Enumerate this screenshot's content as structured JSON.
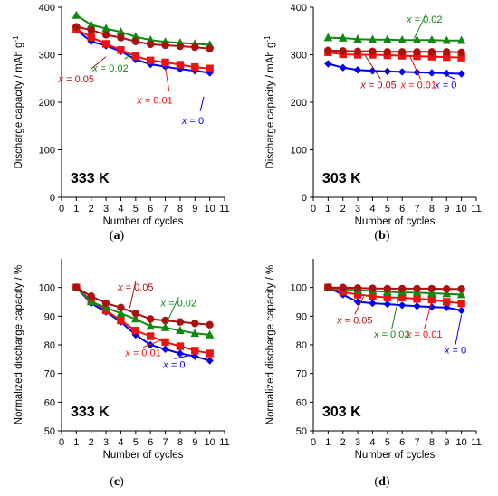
{
  "colors": {
    "x0": "#0000ee",
    "x001": "#ee1111",
    "x002": "#118811",
    "x005": "#aa1111",
    "axis": "#000000"
  },
  "chart_data": [
    {
      "type": "line",
      "panel": "(a)",
      "temperature_label": "333 K",
      "xlabel": "Number of cycles",
      "ylabel": "Discharge capacity / mAh g-1",
      "xlim": [
        0,
        11
      ],
      "ylim": [
        0,
        400
      ],
      "xticks": [
        0,
        1,
        2,
        3,
        4,
        5,
        6,
        7,
        8,
        9,
        10,
        11
      ],
      "yticks": [
        0,
        100,
        200,
        300,
        400
      ],
      "x": [
        1,
        2,
        3,
        4,
        5,
        6,
        7,
        8,
        9,
        10
      ],
      "series": [
        {
          "name": "x = 0",
          "color_key": "x0",
          "marker": "diamond",
          "values": [
            352,
            328,
            319,
            307,
            290,
            280,
            275,
            270,
            266,
            262
          ]
        },
        {
          "name": "x = 0.01",
          "color_key": "x001",
          "marker": "square",
          "values": [
            354,
            337,
            323,
            310,
            297,
            288,
            284,
            279,
            274,
            271
          ]
        },
        {
          "name": "x = 0.02",
          "color_key": "x002",
          "marker": "triangle",
          "values": [
            383,
            363,
            355,
            348,
            338,
            331,
            327,
            325,
            323,
            321
          ]
        },
        {
          "name": "x = 0.05",
          "color_key": "x005",
          "marker": "circle",
          "values": [
            359,
            352,
            342,
            336,
            328,
            322,
            320,
            318,
            316,
            313
          ]
        }
      ],
      "annotations": [
        {
          "text": "x = 0.05",
          "tx": 2.2,
          "ty": 250,
          "ax": 3.0,
          "ay": 296,
          "color_key": "x005",
          "anchor": "end"
        },
        {
          "text": "x = 0.02",
          "tx": 4.5,
          "ty": 272,
          "ax": 4.8,
          "ay": 303,
          "color_key": "x002",
          "anchor": "end"
        },
        {
          "text": "x = 0.01",
          "tx": 7.5,
          "ty": 205,
          "ax": 7.0,
          "ay": 274,
          "color_key": "x001",
          "anchor": "end"
        },
        {
          "text": "x = 0",
          "tx": 9.6,
          "ty": 162,
          "ax": 9.6,
          "ay": 212,
          "color_key": "x0",
          "anchor": "end"
        }
      ]
    },
    {
      "type": "line",
      "panel": "(b)",
      "temperature_label": "303 K",
      "xlabel": "Number of cycles",
      "ylabel": "Discharge capacity / mAh g-1",
      "xlim": [
        0,
        11
      ],
      "ylim": [
        0,
        400
      ],
      "xticks": [
        0,
        1,
        2,
        3,
        4,
        5,
        6,
        7,
        8,
        9,
        10,
        11
      ],
      "yticks": [
        0,
        100,
        200,
        300,
        400
      ],
      "x": [
        1,
        2,
        3,
        4,
        5,
        6,
        7,
        8,
        9,
        10
      ],
      "series": [
        {
          "name": "x = 0",
          "color_key": "x0",
          "marker": "diamond",
          "values": [
            281,
            273,
            268,
            266,
            265,
            264,
            263,
            262,
            261,
            260
          ]
        },
        {
          "name": "x = 0.01",
          "color_key": "x001",
          "marker": "square",
          "values": [
            305,
            301,
            300,
            300,
            299,
            298,
            297,
            296,
            295,
            294
          ]
        },
        {
          "name": "x = 0.02",
          "color_key": "x002",
          "marker": "triangle",
          "values": [
            336,
            335,
            333,
            332,
            332,
            331,
            331,
            331,
            330,
            330
          ]
        },
        {
          "name": "x = 0.05",
          "color_key": "x005",
          "marker": "circle",
          "values": [
            309,
            308,
            307,
            307,
            306,
            306,
            306,
            306,
            306,
            305
          ]
        }
      ],
      "annotations": [
        {
          "text": "x = 0.02",
          "tx": 6.3,
          "ty": 368,
          "ax": 6.8,
          "ay": 334,
          "color_key": "x002",
          "anchor": "start"
        },
        {
          "text": "x = 0.05",
          "tx": 3.2,
          "ty": 230,
          "ax": 3.5,
          "ay": 298,
          "color_key": "x005",
          "anchor": "start"
        },
        {
          "text": "x = 0.01",
          "tx": 5.9,
          "ty": 230,
          "ax": 6.5,
          "ay": 298,
          "color_key": "x001",
          "anchor": "start"
        },
        {
          "text": "x = 0",
          "tx": 8.2,
          "ty": 230,
          "ax": 8.8,
          "ay": 260,
          "color_key": "x0",
          "anchor": "start"
        }
      ]
    },
    {
      "type": "line",
      "panel": "(c)",
      "temperature_label": "333 K",
      "xlabel": "Number of cycles",
      "ylabel": "Normalized discharge capacity / %",
      "xlim": [
        0,
        11
      ],
      "ylim": [
        50,
        110
      ],
      "xticks": [
        0,
        1,
        2,
        3,
        4,
        5,
        6,
        7,
        8,
        9,
        10,
        11
      ],
      "yticks": [
        50,
        60,
        70,
        80,
        90,
        100
      ],
      "x": [
        1,
        2,
        3,
        4,
        5,
        6,
        7,
        8,
        9,
        10
      ],
      "series": [
        {
          "name": "x = 0",
          "color_key": "x0",
          "marker": "diamond",
          "values": [
            100,
            94.5,
            91.5,
            88,
            83.5,
            80,
            78.5,
            77,
            76,
            74.5
          ]
        },
        {
          "name": "x = 0.01",
          "color_key": "x001",
          "marker": "square",
          "values": [
            100,
            95.5,
            92,
            88.5,
            85,
            83,
            81,
            79.5,
            78,
            77
          ]
        },
        {
          "name": "x = 0.02",
          "color_key": "x002",
          "marker": "triangle",
          "values": [
            100,
            95,
            93,
            91,
            89,
            86.5,
            86,
            85,
            84,
            83.5
          ]
        },
        {
          "name": "x = 0.05",
          "color_key": "x005",
          "marker": "circle",
          "values": [
            100,
            97,
            94.5,
            93,
            91,
            89,
            88.5,
            88,
            87.5,
            87
          ]
        }
      ],
      "annotations": [
        {
          "text": "x = 0.05",
          "tx": 5.0,
          "ty": 99,
          "ax": 4.6,
          "ay": 92.8,
          "color_key": "x005",
          "anchor": "middle"
        },
        {
          "text": "x = 0.02",
          "tx": 7.9,
          "ty": 93.5,
          "ax": 7.0,
          "ay": 86.6,
          "color_key": "x002",
          "anchor": "middle"
        },
        {
          "text": "x = 0.01",
          "tx": 5.5,
          "ty": 76,
          "ax": 6.6,
          "ay": 81.4,
          "color_key": "x001",
          "anchor": "middle"
        },
        {
          "text": "x = 0",
          "tx": 7.6,
          "ty": 72,
          "ax": 8.6,
          "ay": 76.3,
          "color_key": "x0",
          "anchor": "middle"
        }
      ]
    },
    {
      "type": "line",
      "panel": "(d)",
      "temperature_label": "303 K",
      "xlabel": "Number of cycles",
      "ylabel": "Normalized discharge capacity / %",
      "xlim": [
        0,
        11
      ],
      "ylim": [
        50,
        110
      ],
      "xticks": [
        0,
        1,
        2,
        3,
        4,
        5,
        6,
        7,
        8,
        9,
        10,
        11
      ],
      "yticks": [
        50,
        60,
        70,
        80,
        90,
        100
      ],
      "x": [
        1,
        2,
        3,
        4,
        5,
        6,
        7,
        8,
        9,
        10
      ],
      "series": [
        {
          "name": "x = 0",
          "color_key": "x0",
          "marker": "diamond",
          "values": [
            100,
            97.5,
            95,
            94.5,
            94.2,
            93.8,
            93.5,
            93.2,
            93,
            92
          ]
        },
        {
          "name": "x = 0.01",
          "color_key": "x001",
          "marker": "square",
          "values": [
            100,
            98.5,
            97.5,
            97,
            96.5,
            96.5,
            96,
            95.8,
            95,
            94.5
          ]
        },
        {
          "name": "x = 0.02",
          "color_key": "x002",
          "marker": "triangle",
          "values": [
            100,
            99.5,
            99,
            98.8,
            98.5,
            98.3,
            98.2,
            98,
            97.8,
            97.5
          ]
        },
        {
          "name": "x = 0.05",
          "color_key": "x005",
          "marker": "circle",
          "values": [
            100,
            100,
            99.8,
            99.7,
            99.6,
            99.6,
            99.6,
            99.6,
            99.5,
            99.5
          ]
        }
      ],
      "annotations": [
        {
          "text": "x = 0.05",
          "tx": 2.8,
          "ty": 87.5,
          "ax": 3.4,
          "ay": 96.8,
          "color_key": "x005",
          "anchor": "middle"
        },
        {
          "text": "x = 0.02",
          "tx": 5.3,
          "ty": 82.5,
          "ax": 5.8,
          "ay": 97.6,
          "color_key": "x002",
          "anchor": "middle"
        },
        {
          "text": "x = 0.01",
          "tx": 7.5,
          "ty": 82.5,
          "ax": 8.0,
          "ay": 95.4,
          "color_key": "x001",
          "anchor": "middle"
        },
        {
          "text": "x = 0",
          "tx": 9.6,
          "ty": 77,
          "ax": 10.0,
          "ay": 90.5,
          "color_key": "x0",
          "anchor": "middle"
        }
      ]
    }
  ]
}
